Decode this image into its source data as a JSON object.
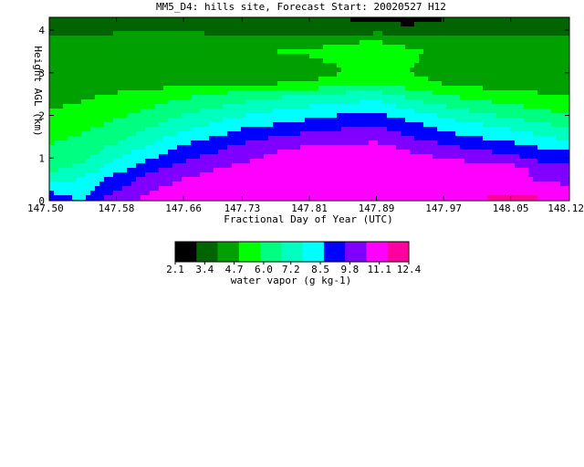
{
  "chart_data": {
    "type": "heatmap",
    "title": "MM5_D4: hills site,  Forecast Start: 20020527 H12",
    "xlabel": "Fractional Day of Year (UTC)",
    "ylabel": "Height AGL (km)",
    "x_ticks": [
      "147.50",
      "147.58",
      "147.66",
      "147.73",
      "147.81",
      "147.89",
      "147.97",
      "148.05",
      "148.12"
    ],
    "y_ticks": [
      "0",
      "1",
      "2",
      "3",
      "4"
    ],
    "xlim": [
      147.5,
      148.12
    ],
    "ylim": [
      0,
      4.3
    ],
    "x": [
      147.5,
      147.54,
      147.58,
      147.62,
      147.66,
      147.7,
      147.73,
      147.77,
      147.81,
      147.85,
      147.89,
      147.93,
      147.97,
      148.01,
      148.05,
      148.08,
      148.12
    ],
    "y": [
      0.0,
      0.25,
      0.5,
      0.75,
      1.0,
      1.25,
      1.5,
      1.75,
      2.0,
      2.25,
      2.5,
      2.75,
      3.0,
      3.25,
      3.5,
      3.75,
      4.0,
      4.3
    ],
    "values": [
      [
        8.9,
        8.7,
        10.5,
        10.8,
        11.0,
        11.1,
        11.2,
        11.3,
        11.3,
        11.3,
        11.2,
        11.3,
        11.4,
        11.5,
        11.6,
        11.6,
        11.3
      ],
      [
        8.6,
        8.3,
        9.4,
        10.5,
        10.9,
        11.0,
        11.1,
        11.2,
        11.3,
        11.3,
        11.2,
        11.3,
        11.3,
        11.3,
        11.4,
        11.2,
        10.8
      ],
      [
        7.2,
        7.9,
        9.0,
        10.0,
        10.6,
        10.9,
        11.0,
        11.1,
        11.2,
        11.2,
        11.2,
        11.2,
        11.2,
        11.2,
        11.1,
        10.4,
        10.2
      ],
      [
        6.5,
        7.1,
        8.3,
        9.3,
        10.0,
        10.5,
        10.8,
        11.0,
        11.1,
        11.2,
        11.2,
        11.2,
        11.1,
        11.1,
        11.0,
        10.3,
        10.0
      ],
      [
        6.2,
        6.6,
        7.6,
        8.6,
        9.4,
        9.9,
        10.3,
        10.8,
        11.0,
        11.1,
        11.1,
        10.9,
        10.5,
        10.2,
        9.9,
        9.3,
        9.2
      ],
      [
        5.9,
        6.3,
        7.0,
        7.9,
        8.8,
        9.4,
        9.8,
        10.3,
        10.6,
        10.8,
        10.8,
        10.3,
        9.8,
        9.4,
        9.1,
        8.7,
        8.3
      ],
      [
        5.6,
        6.0,
        6.5,
        7.3,
        8.1,
        8.7,
        9.2,
        9.6,
        9.9,
        10.1,
        10.2,
        9.6,
        9.0,
        8.6,
        8.3,
        7.9,
        7.4
      ],
      [
        5.3,
        5.6,
        6.1,
        6.7,
        7.4,
        8.0,
        8.5,
        8.8,
        9.1,
        9.4,
        9.6,
        9.0,
        8.4,
        7.9,
        7.5,
        7.1,
        6.7
      ],
      [
        5.0,
        5.3,
        5.7,
        6.2,
        6.8,
        7.3,
        7.7,
        8.1,
        8.4,
        8.7,
        8.9,
        8.2,
        7.6,
        7.0,
        6.6,
        6.3,
        6.0
      ],
      [
        4.8,
        5.0,
        5.3,
        5.7,
        6.2,
        6.6,
        7.0,
        7.3,
        7.6,
        7.9,
        8.1,
        7.3,
        6.7,
        6.2,
        5.9,
        5.6,
        5.3
      ],
      [
        4.6,
        4.7,
        5.0,
        5.3,
        5.6,
        5.9,
        6.2,
        6.5,
        6.8,
        7.0,
        7.1,
        6.4,
        5.8,
        5.4,
        5.2,
        5.0,
        4.8
      ],
      [
        4.4,
        4.3,
        4.4,
        4.5,
        4.6,
        4.7,
        4.8,
        4.9,
        5.0,
        5.4,
        5.7,
        5.3,
        4.9,
        4.6,
        4.4,
        4.4,
        4.5
      ],
      [
        4.5,
        4.3,
        4.2,
        4.2,
        4.3,
        4.3,
        4.4,
        4.4,
        4.5,
        4.9,
        5.1,
        4.9,
        4.5,
        4.2,
        4.1,
        4.2,
        4.4
      ],
      [
        4.7,
        4.6,
        4.5,
        4.5,
        4.6,
        4.6,
        4.7,
        4.7,
        4.8,
        5.0,
        5.2,
        5.0,
        4.6,
        4.4,
        4.3,
        4.5,
        4.7
      ],
      [
        4.9,
        4.8,
        4.7,
        4.7,
        4.8,
        4.8,
        4.9,
        4.9,
        5.0,
        5.1,
        5.3,
        5.0,
        4.8,
        4.6,
        4.5,
        4.6,
        4.8
      ],
      [
        4.5,
        4.4,
        4.4,
        4.4,
        4.6,
        4.5,
        4.5,
        4.6,
        4.7,
        4.8,
        4.9,
        4.7,
        4.5,
        4.3,
        4.2,
        4.3,
        4.4
      ],
      [
        3.7,
        3.7,
        3.8,
        3.8,
        3.8,
        3.7,
        3.7,
        3.6,
        3.6,
        3.5,
        3.6,
        3.5,
        3.5,
        3.6,
        3.7,
        3.7,
        3.7
      ],
      [
        3.3,
        3.3,
        3.4,
        3.4,
        3.4,
        3.3,
        3.3,
        3.2,
        3.1,
        3.0,
        2.6,
        2.4,
        3.0,
        3.1,
        3.2,
        3.1,
        3.0
      ]
    ],
    "colorbar": {
      "levels": [
        "2.1",
        "3.4",
        "4.7",
        "6.0",
        "7.2",
        "8.5",
        "9.8",
        "11.1",
        "12.4"
      ],
      "bounds": [
        2.1,
        12.4
      ],
      "colors": [
        "#000000",
        "#006400",
        "#00a000",
        "#00ff00",
        "#00ff80",
        "#00ffc0",
        "#00ffff",
        "#0000ff",
        "#8000ff",
        "#ff00ff",
        "#ff00a0"
      ],
      "label": "water vapor (g kg-1)"
    }
  }
}
